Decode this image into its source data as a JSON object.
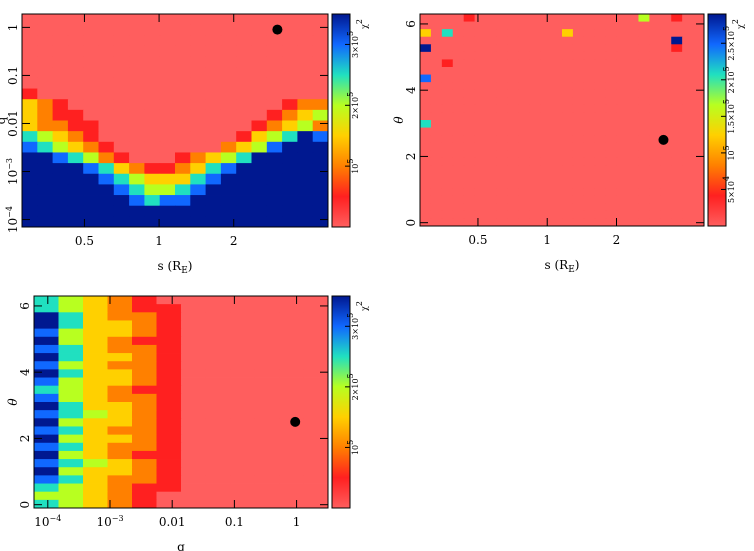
{
  "chart_data": [
    {
      "type": "heatmap",
      "name": "chi2-map-s-q",
      "xlabel": "s (R",
      "xlabel_sub": "E",
      "xlabel_tail": ")",
      "ylabel": "q",
      "xscale": "log",
      "yscale": "log",
      "xlim": [
        0.28,
        4.8
      ],
      "ylim": [
        7e-05,
        1.9
      ],
      "xticks": [
        {
          "v": 0.5,
          "t": "0.5"
        },
        {
          "v": 1,
          "t": "1"
        },
        {
          "v": 2,
          "t": "2"
        }
      ],
      "yticks": [
        {
          "v": 1,
          "t": "1",
          "sup": ""
        },
        {
          "v": 0.1,
          "t": "0.1",
          "sup": ""
        },
        {
          "v": 0.01,
          "t": "0.01",
          "sup": ""
        },
        {
          "v": 0.001,
          "t": "10",
          "sup": "−3"
        },
        {
          "v": 0.0001,
          "t": "10",
          "sup": "−4"
        }
      ],
      "best_fit": {
        "x": 3.0,
        "y": 0.9
      },
      "colorbar": {
        "label": "χ",
        "label_sup": "2",
        "ticks": [
          "3×10",
          "2×10",
          "10"
        ],
        "tick_sups": [
          "5",
          "5",
          "5"
        ],
        "tick_values": [
          300000,
          200000,
          100000
        ],
        "range": [
          0,
          350000
        ]
      },
      "rows": 20,
      "cols": 20,
      "cells": [
        "00000000000000000000",
        "00000000000000000000",
        "00000000000000000000",
        "00000000000000000000",
        "00000000000000000000",
        "00000000000000000000",
        "00000000000000000000",
        "10000000000000000000",
        "32100000000000000122",
        "32110000000000001234",
        "32211000000000012342",
        "54321000000000134576",
        "65432100000002346777",
        "77654210001234577777",
        "77776532112356777777",
        "77777654333567777777",
        "77777765445677777777",
        "77777776566777777777",
        "77777777777777777777",
        "77777777777777777777"
      ]
    },
    {
      "type": "heatmap",
      "name": "chi2-map-s-theta",
      "xlabel": "s (R",
      "xlabel_sub": "E",
      "xlabel_tail": ")",
      "ylabel": "θ",
      "xscale": "log",
      "yscale": "linear",
      "xlim": [
        0.28,
        4.8
      ],
      "ylim": [
        -0.1,
        6.3
      ],
      "xticks": [
        {
          "v": 0.5,
          "t": "0.5"
        },
        {
          "v": 1,
          "t": "1"
        },
        {
          "v": 2,
          "t": "2"
        }
      ],
      "yticks": [
        {
          "v": 0,
          "t": "0",
          "sup": ""
        },
        {
          "v": 2,
          "t": "2",
          "sup": ""
        },
        {
          "v": 4,
          "t": "4",
          "sup": ""
        },
        {
          "v": 6,
          "t": "6",
          "sup": ""
        }
      ],
      "best_fit": {
        "x": 3.2,
        "y": 2.5
      },
      "colorbar": {
        "label": "χ",
        "label_sup": "2",
        "ticks": [
          "2.5×10",
          "2×10",
          "1.5×10",
          "10",
          "5×10"
        ],
        "tick_sups": [
          "5",
          "5",
          "5",
          "5",
          "4"
        ],
        "tick_values": [
          250000,
          200000,
          150000,
          100000,
          50000
        ],
        "range": [
          0,
          290000
        ]
      },
      "rows": 28,
      "cols": 26,
      "cells": [
        "00001000000000000000400100",
        "00000000000000000000000000",
        "30500000000003000000000000",
        "00000000000000000000000700",
        "70000000000000000000000100",
        "00000000000000000000000000",
        "00100000000000000000000000",
        "00000000000000000000000000",
        "60000000000000000000000000",
        "00000000000000000000000000",
        "00000000000000000000000000",
        "00000000000000000000000000",
        "00000000000000000000000000",
        "00000000000000000000000000",
        "50000000000000000000000000",
        "00000000000000000000000000",
        "00000000000000000000000000",
        "00000000000000000000000000",
        "00000000000000000000000000",
        "00000000000000000000000000",
        "00000000000000000000000000",
        "00000000000000000000000000",
        "00000000000000000000000000",
        "00000000000000000000000000",
        "00000000000000000000000000",
        "00000000000000000000000000",
        "00000000000000000000000000",
        "00000000000000000000000000"
      ]
    },
    {
      "type": "heatmap",
      "name": "chi2-map-q-theta",
      "xlabel": "q",
      "xlabel_sub": "",
      "xlabel_tail": "",
      "ylabel": "θ",
      "xscale": "log",
      "yscale": "linear",
      "xlim": [
        6e-05,
        3.2
      ],
      "ylim": [
        -0.1,
        6.3
      ],
      "xticks": [
        {
          "v": 0.0001,
          "t": "10",
          "sup": "−4"
        },
        {
          "v": 0.001,
          "t": "10",
          "sup": "−3"
        },
        {
          "v": 0.01,
          "t": "0.01",
          "sup": ""
        },
        {
          "v": 0.1,
          "t": "0.1",
          "sup": ""
        },
        {
          "v": 1,
          "t": "1",
          "sup": ""
        }
      ],
      "yticks": [
        {
          "v": 0,
          "t": "0",
          "sup": ""
        },
        {
          "v": 2,
          "t": "2",
          "sup": ""
        },
        {
          "v": 4,
          "t": "4",
          "sup": ""
        },
        {
          "v": 6,
          "t": "6",
          "sup": ""
        }
      ],
      "best_fit": {
        "x": 0.95,
        "y": 2.5
      },
      "colorbar": {
        "label": "χ",
        "label_sup": "2",
        "ticks": [
          "3×10",
          "2×10",
          "10"
        ],
        "tick_sups": [
          "5",
          "5",
          "5"
        ],
        "tick_values": [
          300000,
          200000,
          100000
        ],
        "range": [
          0,
          350000
        ]
      },
      "rows": 26,
      "cols": 12,
      "cells": [
        "543210000000",
        "543211000000",
        "753221000000",
        "753321000000",
        "643321000000",
        "743211000000",
        "653221000000",
        "753321000000",
        "643221000000",
        "753321000000",
        "643321000000",
        "543211000000",
        "643221000000",
        "753321000000",
        "654321000000",
        "743321000000",
        "653221000000",
        "743321000000",
        "653221000000",
        "743211000000",
        "654321000000",
        "743321000000",
        "653221000000",
        "543211000000",
        "443210000000",
        "543210000000"
      ]
    }
  ]
}
